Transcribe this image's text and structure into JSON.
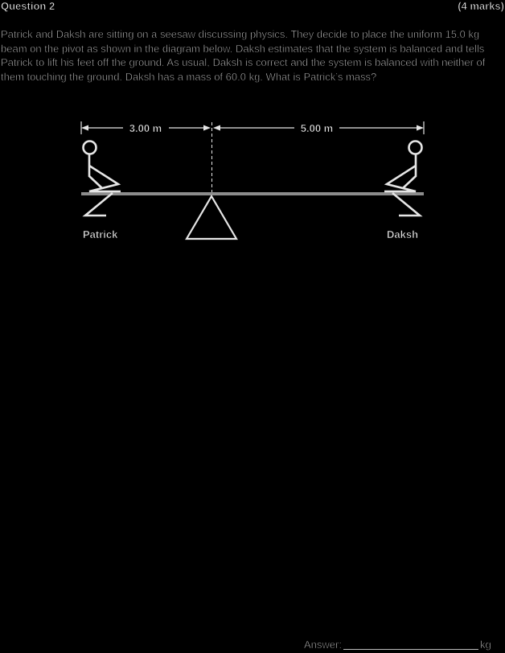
{
  "question": {
    "title": "Question 2",
    "marks": "(4 marks)",
    "text": "Patrick and Daksh are sitting on a seesaw discussing physics. They decide to place the uniform 15.0 kg beam on the pivot as shown in the diagram below. Daksh estimates that the system is balanced and tells Patrick to lift his feet off the ground. As usual, Daksh is correct and the system is balanced with neither of them touching the ground. Daksh has a mass of 60.0 kg. What is Patrick’s mass?"
  },
  "diagram": {
    "left_distance": "3.00 m",
    "right_distance": "5.00 m",
    "left_person": "Patrick",
    "right_person": "Daksh",
    "line_color": "#e6e6e6",
    "beam_color": "#8c8c8c"
  },
  "answer": {
    "label": "Answer:",
    "unit": "kg"
  }
}
